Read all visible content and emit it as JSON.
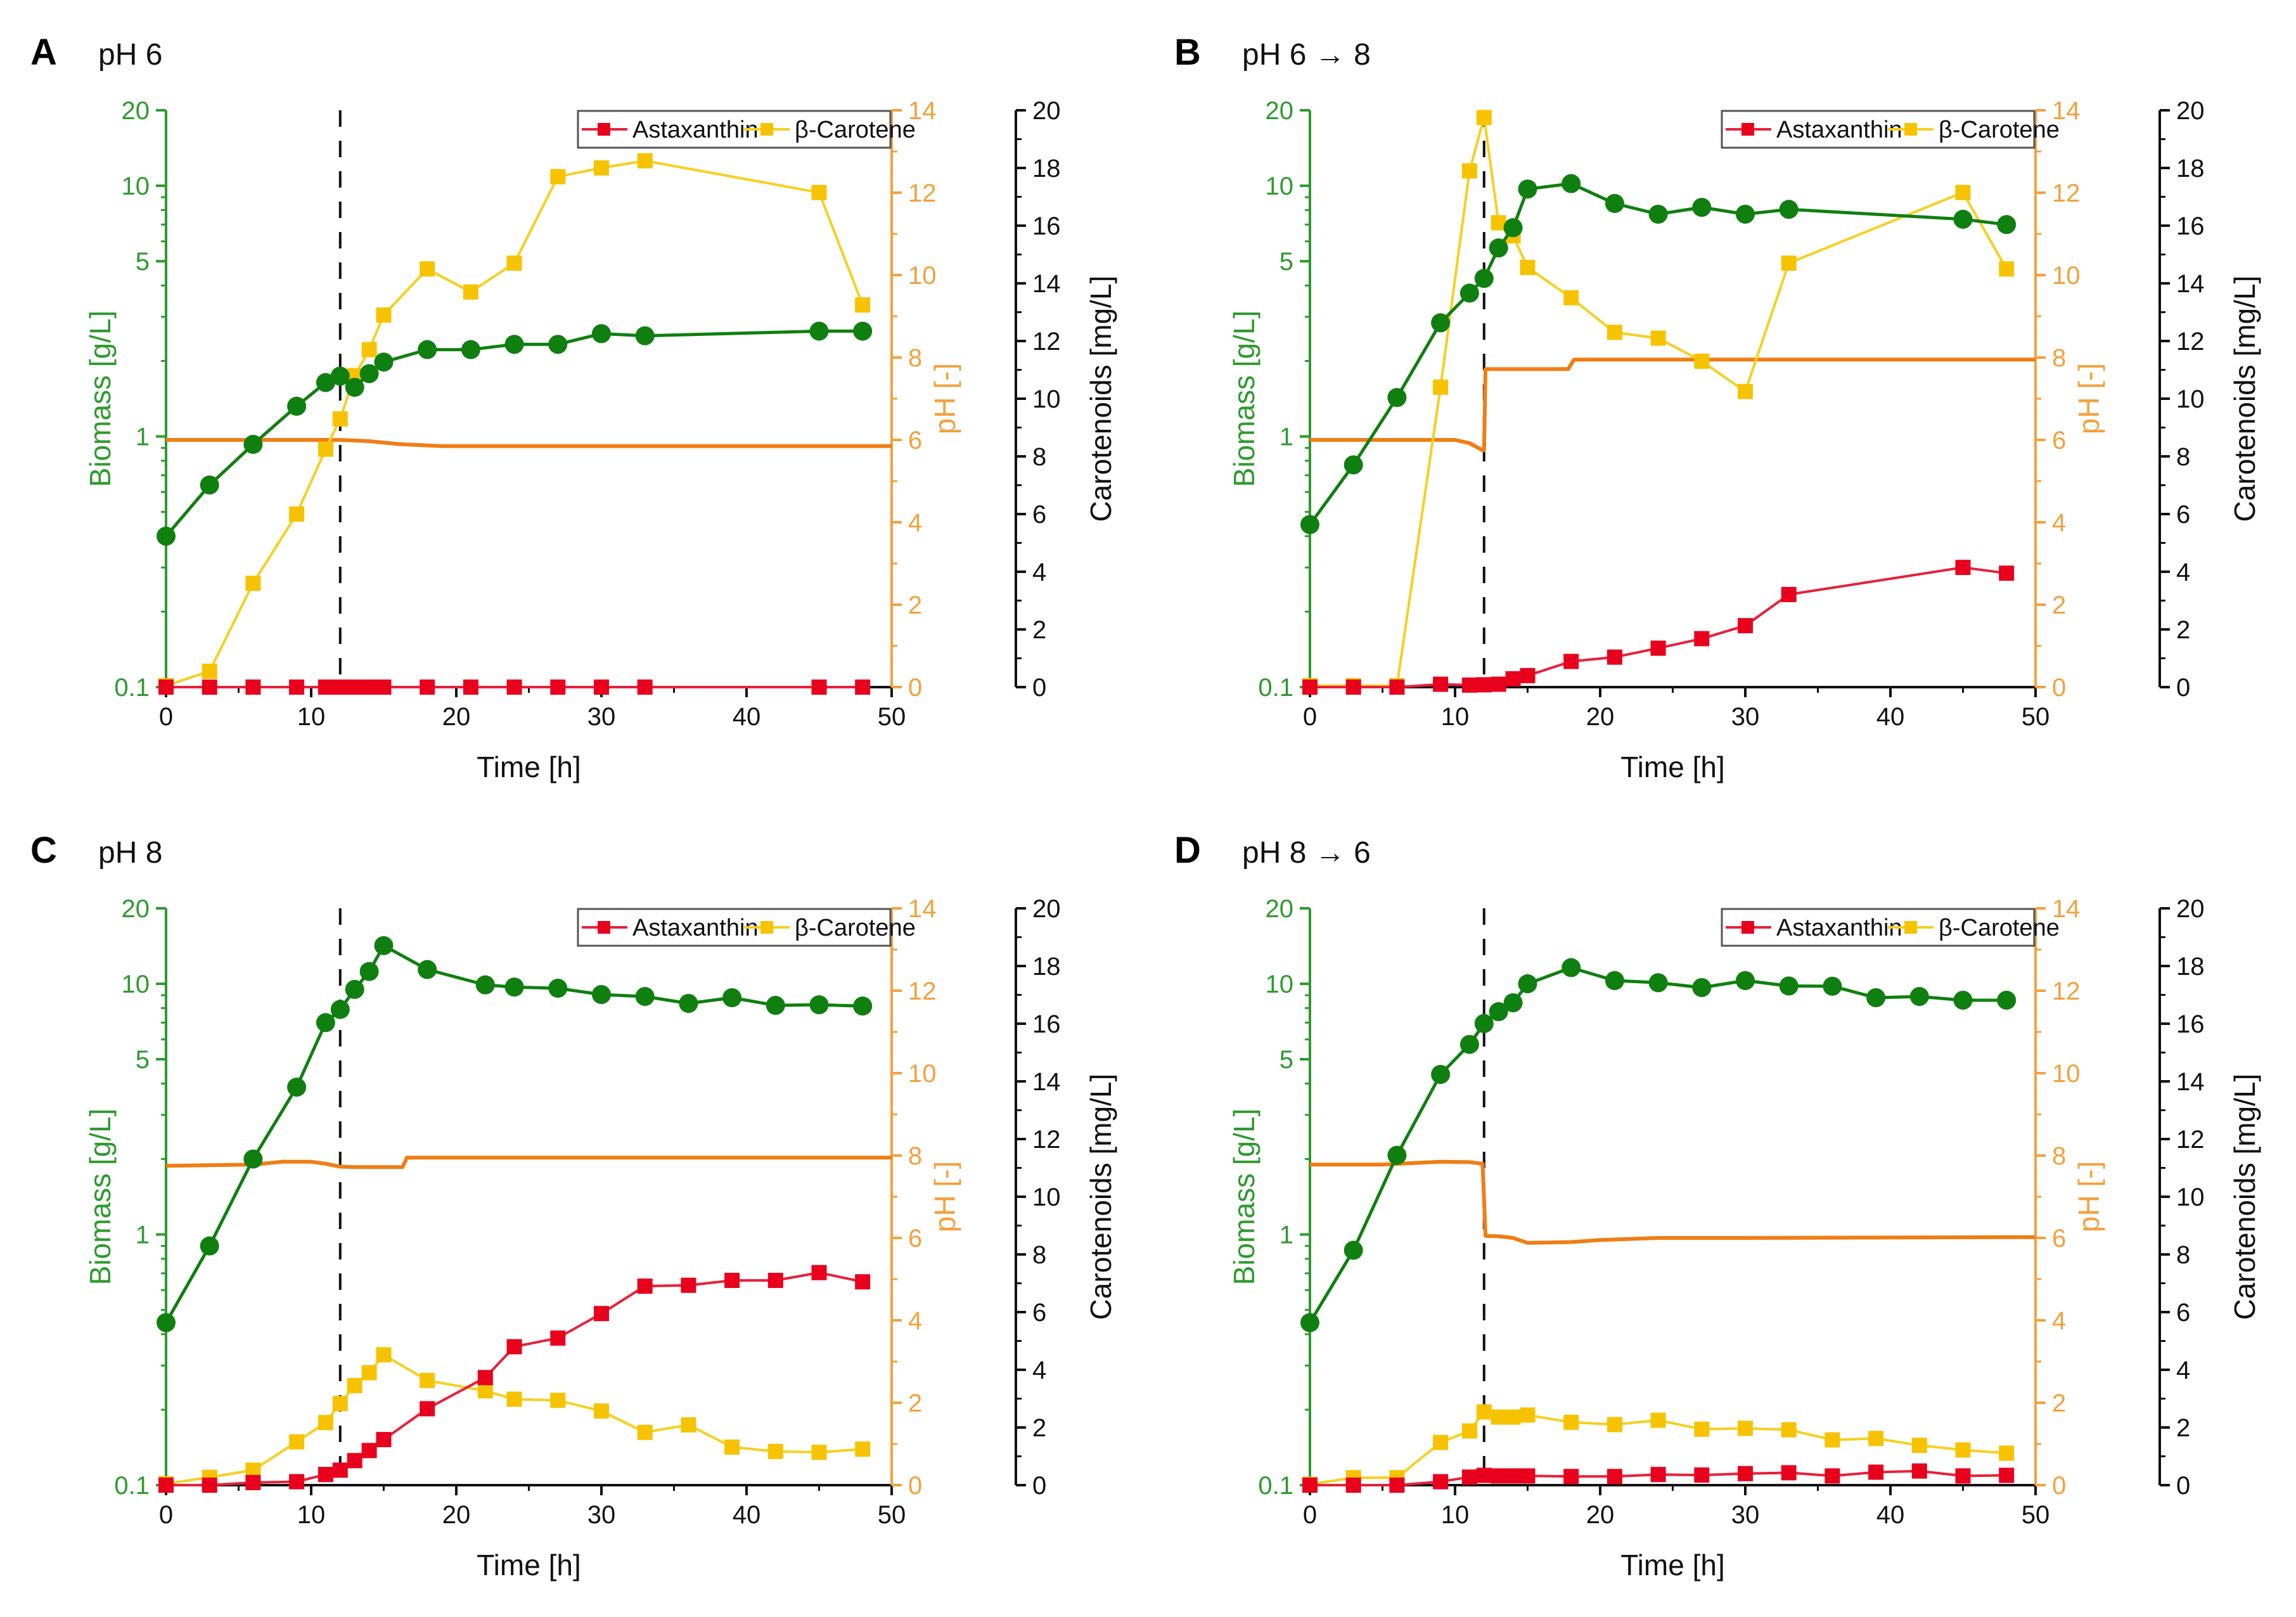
{
  "figure": {
    "colors": {
      "biomass": "#0f7f0f",
      "biomass_axis": "#2e9a2e",
      "astaxanthin": "#e8001c",
      "astaxanthin_line": "#e8203a",
      "beta_carotene": "#f7c300",
      "beta_carotene_line": "#f5d020",
      "ph": "#f07d14",
      "ph_axis": "#f3a13c",
      "carotenoid_axis": "#111111",
      "vline": "#111111"
    }
  },
  "chart_data": [
    {
      "type": "line",
      "panel_letter": "A",
      "title": "pH 6",
      "xlabel": "Time [h]",
      "ylabel_left": "Biomass [g/L]",
      "ylabel_right_inner": "pH [-]",
      "ylabel_right_outer": "Carotenoids [mg/L]",
      "xlim": [
        0,
        50
      ],
      "ylim_left": [
        0.1,
        20
      ],
      "yscale_left": "log",
      "ylim_ph": [
        0,
        14
      ],
      "ylim_carotenoids": [
        0,
        20
      ],
      "x_ticks": [
        "0",
        "10",
        "20",
        "30",
        "40",
        "50"
      ],
      "y_left_ticks": [
        "0.1",
        "1",
        "5",
        "10",
        "20"
      ],
      "y_ph_ticks": [
        "0",
        "2",
        "4",
        "6",
        "8",
        "10",
        "12",
        "14"
      ],
      "y_carot_ticks": [
        "0",
        "2",
        "4",
        "6",
        "8",
        "10",
        "12",
        "14",
        "16",
        "18",
        "20"
      ],
      "vline_x": 12,
      "legend": {
        "position": "top-right",
        "entries": [
          "Astaxanthin",
          "β-Carotene"
        ]
      },
      "grid": false,
      "series": [
        {
          "name": "Biomass",
          "axis": "left",
          "marker": "circle",
          "x": [
            0,
            3,
            6,
            9,
            11,
            12,
            13,
            14,
            15,
            18,
            21,
            24,
            27,
            30,
            33,
            45,
            48
          ],
          "y": [
            0.4,
            0.64,
            0.93,
            1.32,
            1.64,
            1.74,
            1.57,
            1.78,
            1.98,
            2.22,
            2.22,
            2.33,
            2.33,
            2.57,
            2.52,
            2.63,
            2.63
          ]
        },
        {
          "name": "Astaxanthin",
          "axis": "carotenoids",
          "marker": "square",
          "x": [
            0,
            3,
            6,
            9,
            11,
            12,
            13,
            14,
            15,
            18,
            21,
            24,
            27,
            30,
            33,
            45,
            48
          ],
          "y": [
            0,
            0,
            0,
            0,
            0,
            0,
            0,
            0,
            0,
            0,
            0,
            0,
            0,
            0,
            0,
            0,
            0
          ]
        },
        {
          "name": "β-Carotene",
          "axis": "carotenoids",
          "marker": "square",
          "x": [
            0,
            3,
            6,
            9,
            11,
            12,
            13,
            14,
            15,
            18,
            21,
            24,
            27,
            30,
            33,
            45,
            48
          ],
          "y": [
            0.05,
            0.55,
            3.6,
            6.0,
            8.25,
            9.3,
            10.8,
            11.7,
            12.9,
            14.5,
            13.7,
            14.7,
            17.7,
            18.0,
            18.25,
            17.15,
            13.25
          ]
        },
        {
          "name": "pH",
          "axis": "ph",
          "marker": "none",
          "x": [
            0,
            12,
            14,
            16,
            19,
            50
          ],
          "y": [
            6.0,
            6.0,
            5.97,
            5.9,
            5.85,
            5.85
          ]
        }
      ]
    },
    {
      "type": "line",
      "panel_letter": "B",
      "title": "pH 6 → 8",
      "xlabel": "Time [h]",
      "ylabel_left": "Biomass [g/L]",
      "ylabel_right_inner": "pH [-]",
      "ylabel_right_outer": "Carotenoids [mg/L]",
      "xlim": [
        0,
        50
      ],
      "ylim_left": [
        0.1,
        20
      ],
      "yscale_left": "log",
      "ylim_ph": [
        0,
        14
      ],
      "ylim_carotenoids": [
        0,
        20
      ],
      "x_ticks": [
        "0",
        "10",
        "20",
        "30",
        "40",
        "50"
      ],
      "y_left_ticks": [
        "0.1",
        "1",
        "5",
        "10",
        "20"
      ],
      "y_ph_ticks": [
        "0",
        "2",
        "4",
        "6",
        "8",
        "10",
        "12",
        "14"
      ],
      "y_carot_ticks": [
        "0",
        "2",
        "4",
        "6",
        "8",
        "10",
        "12",
        "14",
        "16",
        "18",
        "20"
      ],
      "vline_x": 12,
      "legend": {
        "position": "top-right",
        "entries": [
          "Astaxanthin",
          "β-Carotene"
        ]
      },
      "grid": false,
      "series": [
        {
          "name": "Biomass",
          "axis": "left",
          "marker": "circle",
          "x": [
            0,
            3,
            6,
            9,
            11,
            12,
            13,
            14,
            15,
            18,
            21,
            24,
            27,
            30,
            33,
            45,
            48
          ],
          "y": [
            0.445,
            0.77,
            1.43,
            2.84,
            3.73,
            4.27,
            5.65,
            6.8,
            9.7,
            10.2,
            8.5,
            7.7,
            8.2,
            7.7,
            8.05,
            7.35,
            7.0
          ]
        },
        {
          "name": "Astaxanthin",
          "axis": "carotenoids",
          "marker": "square",
          "x": [
            0,
            3,
            6,
            9,
            11,
            12,
            13,
            14,
            15,
            18,
            21,
            24,
            27,
            30,
            33,
            45,
            48
          ],
          "y": [
            0,
            0,
            0,
            0.1,
            0.07,
            0.08,
            0.1,
            0.29,
            0.4,
            0.89,
            1.04,
            1.35,
            1.68,
            2.13,
            3.21,
            4.15,
            3.95
          ]
        },
        {
          "name": "β-Carotene",
          "axis": "carotenoids",
          "marker": "square",
          "x": [
            0,
            3,
            6,
            9,
            11,
            12,
            13,
            14,
            15,
            18,
            21,
            24,
            27,
            30,
            33,
            45,
            48
          ],
          "y": [
            0.05,
            0.05,
            0.05,
            10.4,
            17.9,
            19.75,
            16.1,
            15.65,
            14.55,
            13.5,
            12.3,
            12.1,
            11.3,
            10.25,
            14.7,
            17.15,
            14.5
          ]
        },
        {
          "name": "pH",
          "axis": "ph",
          "marker": "none",
          "x": [
            0,
            10,
            11,
            11.9,
            12,
            12.1,
            17.8,
            18.2,
            50
          ],
          "y": [
            6.0,
            6.0,
            5.92,
            5.75,
            5.75,
            7.72,
            7.72,
            7.95,
            7.95
          ]
        }
      ]
    },
    {
      "type": "line",
      "panel_letter": "C",
      "title": "pH 8",
      "xlabel": "Time [h]",
      "ylabel_left": "Biomass [g/L]",
      "ylabel_right_inner": "pH [-]",
      "ylabel_right_outer": "Carotenoids [mg/L]",
      "xlim": [
        0,
        50
      ],
      "ylim_left": [
        0.1,
        20
      ],
      "yscale_left": "log",
      "ylim_ph": [
        0,
        14
      ],
      "ylim_carotenoids": [
        0,
        20
      ],
      "x_ticks": [
        "0",
        "10",
        "20",
        "30",
        "40",
        "50"
      ],
      "y_left_ticks": [
        "0.1",
        "1",
        "5",
        "10",
        "20"
      ],
      "y_ph_ticks": [
        "0",
        "2",
        "4",
        "6",
        "8",
        "10",
        "12",
        "14"
      ],
      "y_carot_ticks": [
        "0",
        "2",
        "4",
        "6",
        "8",
        "10",
        "12",
        "14",
        "16",
        "18",
        "20"
      ],
      "vline_x": 12,
      "legend": {
        "position": "top-right",
        "entries": [
          "Astaxanthin",
          "β-Carotene"
        ]
      },
      "grid": false,
      "series": [
        {
          "name": "Biomass",
          "axis": "left",
          "marker": "circle",
          "x": [
            0,
            3,
            6,
            9,
            11,
            12,
            13,
            14,
            15,
            18,
            22,
            24,
            27,
            30,
            33,
            36,
            39,
            42,
            45,
            48
          ],
          "y": [
            0.445,
            0.9,
            2.0,
            3.87,
            7.0,
            7.9,
            9.5,
            11.2,
            14.2,
            11.4,
            9.9,
            9.7,
            9.6,
            9.06,
            8.9,
            8.35,
            8.8,
            8.2,
            8.25,
            8.15
          ]
        },
        {
          "name": "Astaxanthin",
          "axis": "carotenoids",
          "marker": "square",
          "x": [
            0,
            3,
            6,
            9,
            11,
            12,
            13,
            14,
            15,
            18,
            22,
            24,
            27,
            30,
            33,
            36,
            39,
            42,
            45,
            48
          ],
          "y": [
            0,
            0,
            0.09,
            0.12,
            0.37,
            0.52,
            0.85,
            1.2,
            1.58,
            2.65,
            3.73,
            4.8,
            5.1,
            5.95,
            6.9,
            6.93,
            7.1,
            7.1,
            7.37,
            7.05
          ]
        },
        {
          "name": "β-Carotene",
          "axis": "carotenoids",
          "marker": "square",
          "x": [
            0,
            3,
            6,
            9,
            11,
            12,
            13,
            14,
            15,
            18,
            22,
            24,
            27,
            30,
            33,
            36,
            39,
            42,
            45,
            48
          ],
          "y": [
            0.05,
            0.27,
            0.52,
            1.5,
            2.17,
            2.83,
            3.45,
            3.9,
            4.52,
            3.63,
            3.27,
            2.98,
            2.94,
            2.57,
            1.83,
            2.09,
            1.32,
            1.17,
            1.14,
            1.25
          ]
        },
        {
          "name": "pH",
          "axis": "ph",
          "marker": "none",
          "x": [
            0,
            6,
            8,
            10,
            11,
            12,
            13,
            16.3,
            16.6,
            50
          ],
          "y": [
            7.75,
            7.78,
            7.85,
            7.85,
            7.8,
            7.73,
            7.72,
            7.72,
            7.95,
            7.95
          ]
        }
      ]
    },
    {
      "type": "line",
      "panel_letter": "D",
      "title": "pH 8 → 6",
      "xlabel": "Time [h]",
      "ylabel_left": "Biomass [g/L]",
      "ylabel_right_inner": "pH [-]",
      "ylabel_right_outer": "Carotenoids [mg/L]",
      "xlim": [
        0,
        50
      ],
      "ylim_left": [
        0.1,
        20
      ],
      "yscale_left": "log",
      "ylim_ph": [
        0,
        14
      ],
      "ylim_carotenoids": [
        0,
        20
      ],
      "x_ticks": [
        "0",
        "10",
        "20",
        "30",
        "40",
        "50"
      ],
      "y_left_ticks": [
        "0.1",
        "1",
        "5",
        "10",
        "20"
      ],
      "y_ph_ticks": [
        "0",
        "2",
        "4",
        "6",
        "8",
        "10",
        "12",
        "14"
      ],
      "y_carot_ticks": [
        "0",
        "2",
        "4",
        "6",
        "8",
        "10",
        "12",
        "14",
        "16",
        "18",
        "20"
      ],
      "vline_x": 12,
      "legend": {
        "position": "top-right",
        "entries": [
          "Astaxanthin",
          "β-Carotene"
        ]
      },
      "grid": false,
      "series": [
        {
          "name": "Biomass",
          "axis": "left",
          "marker": "circle",
          "x": [
            0,
            3,
            6,
            9,
            11,
            12,
            13,
            14,
            15,
            18,
            21,
            24,
            27,
            30,
            33,
            36,
            39,
            42,
            45,
            48
          ],
          "y": [
            0.445,
            0.865,
            2.07,
            4.35,
            5.73,
            6.94,
            7.74,
            8.4,
            10.0,
            11.6,
            10.3,
            10.1,
            9.66,
            10.3,
            9.8,
            9.78,
            8.8,
            8.9,
            8.6,
            8.6
          ]
        },
        {
          "name": "Astaxanthin",
          "axis": "carotenoids",
          "marker": "square",
          "x": [
            0,
            3,
            6,
            9,
            11,
            12,
            13,
            14,
            15,
            18,
            21,
            24,
            27,
            30,
            33,
            36,
            39,
            42,
            45,
            48
          ],
          "y": [
            0,
            0,
            0,
            0.12,
            0.28,
            0.34,
            0.32,
            0.32,
            0.32,
            0.3,
            0.3,
            0.37,
            0.35,
            0.4,
            0.43,
            0.32,
            0.45,
            0.49,
            0.32,
            0.34
          ]
        },
        {
          "name": "β-Carotene",
          "axis": "carotenoids",
          "marker": "square",
          "x": [
            0,
            3,
            6,
            9,
            11,
            12,
            13,
            14,
            15,
            18,
            21,
            24,
            27,
            30,
            33,
            36,
            39,
            42,
            45,
            48
          ],
          "y": [
            0.03,
            0.26,
            0.26,
            1.48,
            1.88,
            2.54,
            2.36,
            2.36,
            2.43,
            2.18,
            2.1,
            2.25,
            1.94,
            1.97,
            1.92,
            1.57,
            1.62,
            1.38,
            1.22,
            1.11
          ]
        },
        {
          "name": "pH",
          "axis": "ph",
          "marker": "none",
          "x": [
            0,
            5,
            9,
            11,
            11.9,
            12.1,
            13,
            14,
            15,
            18,
            20,
            24,
            30,
            50
          ],
          "y": [
            7.78,
            7.78,
            7.85,
            7.84,
            7.8,
            6.05,
            6.04,
            6.0,
            5.88,
            5.9,
            5.95,
            6.0,
            6.0,
            6.02
          ]
        }
      ]
    }
  ]
}
